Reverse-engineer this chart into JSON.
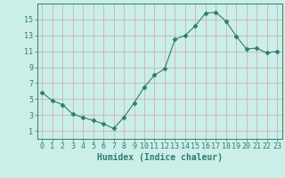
{
  "x": [
    0,
    1,
    2,
    3,
    4,
    5,
    6,
    7,
    8,
    9,
    10,
    11,
    12,
    13,
    14,
    15,
    16,
    17,
    18,
    19,
    20,
    21,
    22,
    23
  ],
  "y": [
    5.8,
    4.8,
    4.3,
    3.1,
    2.7,
    2.3,
    1.9,
    1.3,
    2.7,
    4.5,
    6.5,
    8.0,
    8.8,
    12.5,
    13.0,
    14.2,
    15.8,
    15.9,
    14.8,
    12.9,
    11.3,
    11.4,
    10.8,
    11.0
  ],
  "line_color": "#2e7d6e",
  "marker": "D",
  "marker_size": 2.5,
  "bg_color": "#cceee8",
  "grid_color": "#b8d8d0",
  "xlabel": "Humidex (Indice chaleur)",
  "ylim": [
    0,
    17
  ],
  "xlim": [
    -0.5,
    23.5
  ],
  "yticks": [
    1,
    3,
    5,
    7,
    9,
    11,
    13,
    15
  ],
  "xticks": [
    0,
    1,
    2,
    3,
    4,
    5,
    6,
    7,
    8,
    9,
    10,
    11,
    12,
    13,
    14,
    15,
    16,
    17,
    18,
    19,
    20,
    21,
    22,
    23
  ],
  "axis_color": "#2e7d6e",
  "tick_color": "#2e7d6e",
  "label_fontsize": 7,
  "tick_fontsize": 6
}
